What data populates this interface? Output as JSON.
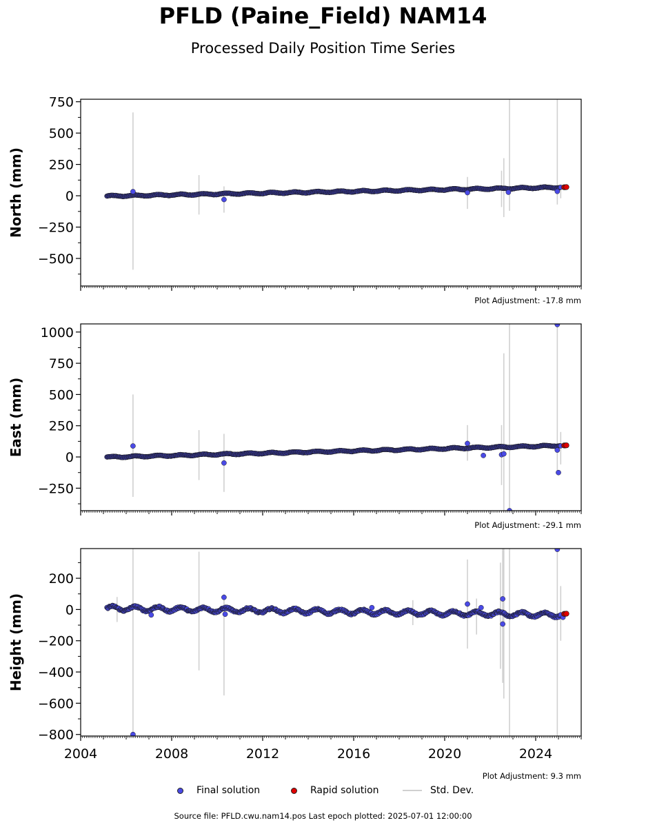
{
  "title": "PFLD (Paine_Field) NAM14",
  "subtitle": "Processed Daily Position Time Series",
  "legend": {
    "final": "Final solution",
    "rapid": "Rapid solution",
    "std": "Std. Dev."
  },
  "source": "Source file: PFLD.cwu.nam14.pos  Last epoch plotted: 2025-07-01 12:00:00",
  "colors": {
    "final": "#4a4ae6",
    "rapid": "#e00000",
    "stddev": "#d0d0d0",
    "edge": "#1a1a1a"
  },
  "chart_data": [
    {
      "type": "scatter",
      "ylabel": "North (mm)",
      "adjustment": "Plot Adjustment: -17.8 mm",
      "xlim": [
        2004.0,
        2026.0
      ],
      "ylim": [
        -720,
        770
      ],
      "yticks": [
        750,
        500,
        250,
        0,
        -250,
        -500
      ],
      "ytick_labels": [
        "750",
        "500",
        "250",
        "0",
        "−250",
        "−500"
      ],
      "xticks": [
        2004,
        2008,
        2012,
        2016,
        2020,
        2024
      ],
      "xtick_labels": [],
      "trend": {
        "x": [
          2005.15,
          2025.3
        ],
        "y": [
          -3,
          68
        ]
      },
      "trend_wave": 5,
      "outliers": [
        [
          2006.3,
          33
        ],
        [
          2010.3,
          -30
        ],
        [
          2021.0,
          25
        ],
        [
          2022.8,
          28
        ],
        [
          2024.95,
          35
        ]
      ],
      "errorbars": [
        [
          2006.3,
          -590,
          665
        ],
        [
          2009.2,
          -150,
          165
        ],
        [
          2010.3,
          -135,
          75
        ],
        [
          2021.0,
          -105,
          150
        ],
        [
          2022.5,
          -90,
          200
        ],
        [
          2022.6,
          -170,
          300
        ],
        [
          2022.85,
          -120,
          770
        ],
        [
          2024.95,
          -70,
          770
        ],
        [
          2025.1,
          -20,
          90
        ]
      ],
      "rapid": [
        [
          2025.25,
          68
        ],
        [
          2025.3,
          68
        ],
        [
          2025.35,
          69
        ]
      ]
    },
    {
      "type": "scatter",
      "ylabel": "East (mm)",
      "adjustment": "Plot Adjustment: -29.1 mm",
      "xlim": [
        2004.0,
        2026.0
      ],
      "ylim": [
        -430,
        1065
      ],
      "yticks": [
        1000,
        750,
        500,
        250,
        0,
        -250
      ],
      "ytick_labels": [
        "1000",
        "750",
        "500",
        "250",
        "0",
        "−250"
      ],
      "xticks": [
        2004,
        2008,
        2012,
        2016,
        2020,
        2024
      ],
      "xtick_labels": [],
      "trend": {
        "x": [
          2005.15,
          2025.3
        ],
        "y": [
          -2,
          92
        ]
      },
      "trend_wave": 5,
      "outliers": [
        [
          2006.3,
          88
        ],
        [
          2010.3,
          -48
        ],
        [
          2021.0,
          108
        ],
        [
          2021.7,
          12
        ],
        [
          2022.5,
          18
        ],
        [
          2022.6,
          25
        ],
        [
          2022.85,
          -430
        ],
        [
          2024.95,
          1060
        ],
        [
          2024.95,
          55
        ],
        [
          2025.0,
          -125
        ]
      ],
      "errorbars": [
        [
          2006.3,
          -320,
          500
        ],
        [
          2009.2,
          -185,
          215
        ],
        [
          2010.3,
          -280,
          185
        ],
        [
          2021.0,
          -30,
          255
        ],
        [
          2022.5,
          -225,
          255
        ],
        [
          2022.6,
          -430,
          830
        ],
        [
          2022.85,
          -430,
          1065
        ],
        [
          2024.95,
          -120,
          1065
        ],
        [
          2025.1,
          -60,
          200
        ]
      ],
      "rapid": [
        [
          2025.25,
          92
        ],
        [
          2025.3,
          92
        ],
        [
          2025.35,
          93
        ]
      ]
    },
    {
      "type": "scatter",
      "ylabel": "Height (mm)",
      "adjustment": "Plot Adjustment: 9.3 mm",
      "xlim": [
        2004.0,
        2026.0
      ],
      "ylim": [
        -810,
        390
      ],
      "yticks": [
        200,
        0,
        -200,
        -400,
        -600,
        -800
      ],
      "ytick_labels": [
        "200",
        "0",
        "−200",
        "−400",
        "−600",
        "−800"
      ],
      "xticks": [
        2004,
        2008,
        2012,
        2016,
        2020,
        2024
      ],
      "xtick_labels": [
        "2004",
        "2008",
        "2012",
        "2016",
        "2020",
        "2024"
      ],
      "trend": {
        "x": [
          2005.15,
          2025.3
        ],
        "y": [
          8,
          -35
        ]
      },
      "trend_wave": 14,
      "outliers": [
        [
          2006.3,
          -800
        ],
        [
          2007.1,
          -35
        ],
        [
          2010.3,
          78
        ],
        [
          2010.35,
          -30
        ],
        [
          2016.8,
          12
        ],
        [
          2021.0,
          35
        ],
        [
          2021.6,
          12
        ],
        [
          2022.55,
          68
        ],
        [
          2022.55,
          -93
        ],
        [
          2024.95,
          385
        ],
        [
          2025.2,
          -50
        ]
      ],
      "errorbars": [
        [
          2006.3,
          -810,
          390
        ],
        [
          2005.6,
          -80,
          80
        ],
        [
          2009.2,
          -390,
          370
        ],
        [
          2010.3,
          -550,
          100
        ],
        [
          2018.6,
          -100,
          60
        ],
        [
          2021.0,
          -250,
          320
        ],
        [
          2021.4,
          -160,
          70
        ],
        [
          2022.45,
          -380,
          300
        ],
        [
          2022.55,
          -470,
          390
        ],
        [
          2022.6,
          -570,
          390
        ],
        [
          2022.85,
          -810,
          390
        ],
        [
          2024.95,
          -810,
          390
        ],
        [
          2025.1,
          -200,
          150
        ]
      ],
      "rapid": [
        [
          2025.25,
          -28
        ],
        [
          2025.3,
          -28
        ],
        [
          2025.35,
          -27
        ]
      ]
    }
  ]
}
